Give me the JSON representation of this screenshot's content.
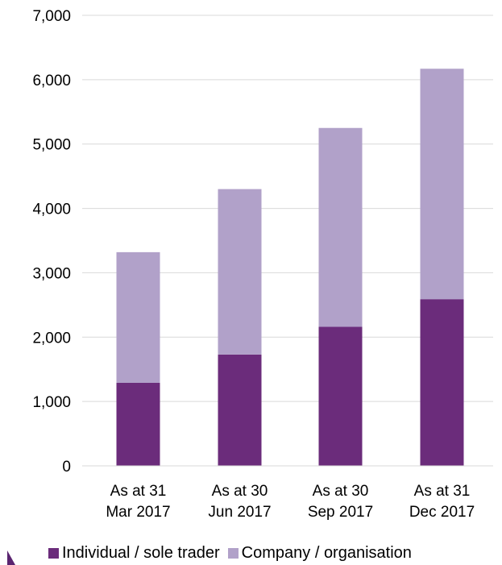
{
  "chart_data": {
    "type": "bar",
    "stacked": true,
    "categories": [
      [
        "As at 31",
        "Mar 2017"
      ],
      [
        "As at 30",
        "Jun 2017"
      ],
      [
        "As at 30",
        "Sep 2017"
      ],
      [
        "As at 31",
        "Dec 2017"
      ]
    ],
    "series": [
      {
        "name": "Individual / sole trader",
        "color": "#6b2c7b",
        "values": [
          1290,
          1730,
          2160,
          2590
        ]
      },
      {
        "name": "Company / organisation",
        "color": "#b1a1c9",
        "values": [
          2030,
          2570,
          3090,
          3580
        ]
      }
    ],
    "ylim": [
      0,
      7000
    ],
    "yticks": [
      0,
      1000,
      2000,
      3000,
      4000,
      5000,
      6000,
      7000
    ],
    "ytick_labels": [
      "0",
      "1,000",
      "2,000",
      "3,000",
      "4,000",
      "5,000",
      "6,000",
      "7,000"
    ],
    "grid": true,
    "gridline_color": "#d9d9d9",
    "legend_position": "bottom",
    "title": "",
    "xlabel": "",
    "ylabel": ""
  },
  "legend": {
    "items": [
      {
        "label": "Individual / sole trader",
        "color": "#6b2c7b"
      },
      {
        "label": "Company / organisation",
        "color": "#b1a1c9"
      }
    ]
  }
}
